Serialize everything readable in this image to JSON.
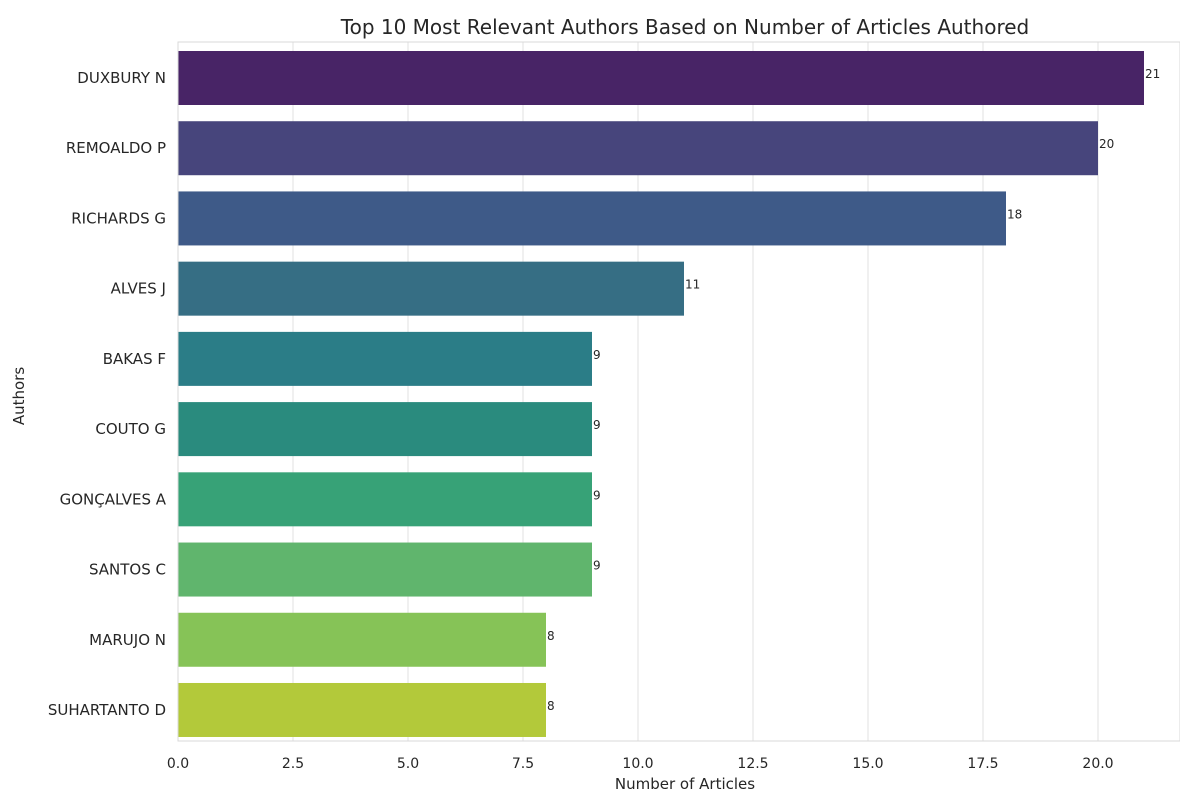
{
  "chart_data": {
    "type": "bar",
    "orientation": "horizontal",
    "title": "Top 10 Most Relevant Authors Based on Number of Articles Authored",
    "xlabel": "Number of Articles",
    "ylabel": "Authors",
    "categories": [
      "DUXBURY N",
      "REMOALDO P",
      "RICHARDS G",
      "ALVES J",
      "BAKAS F",
      "COUTO G",
      "GONÇALVES A",
      "SANTOS C",
      "MARUJO N",
      "SUHARTANTO D"
    ],
    "values": [
      21,
      20,
      18,
      11,
      9,
      9,
      9,
      9,
      8,
      8
    ],
    "data_labels": [
      "21",
      "20",
      "18",
      "11",
      "9",
      "9",
      "9",
      "9",
      "8",
      "8"
    ],
    "colors": [
      "#482466",
      "#47457c",
      "#3e5a88",
      "#366e84",
      "#2b7d87",
      "#2a8b7e",
      "#37a277",
      "#60b56d",
      "#86c357",
      "#b3c93a"
    ],
    "xlim": [
      0,
      21.5
    ],
    "xticks": [
      0.0,
      2.5,
      5.0,
      7.5,
      10.0,
      12.5,
      15.0,
      17.5,
      20.0
    ],
    "xtick_labels": [
      "0.0",
      "2.5",
      "5.0",
      "7.5",
      "10.0",
      "12.5",
      "15.0",
      "17.5",
      "20.0"
    ],
    "grid": "vertical"
  }
}
